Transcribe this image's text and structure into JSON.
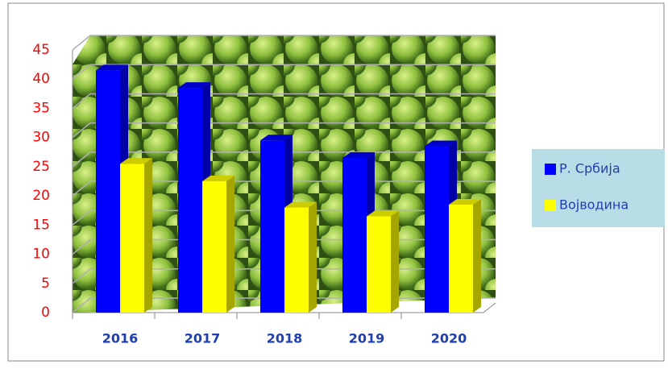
{
  "chart_data": {
    "type": "bar3d",
    "categories": [
      "2016",
      "2017",
      "2018",
      "2019",
      "2020"
    ],
    "series": [
      {
        "name": "Р. Србија",
        "color": "#0000ff",
        "values": [
          41.5,
          38.5,
          29.5,
          26.5,
          28.5
        ]
      },
      {
        "name": "Војводина",
        "color": "#ffff00",
        "values": [
          25.5,
          22.5,
          18,
          16.5,
          18.5
        ]
      }
    ],
    "ylim": [
      0,
      45
    ],
    "yticks": [
      0,
      5,
      10,
      15,
      20,
      25,
      30,
      35,
      40,
      45
    ],
    "grid": true,
    "legend": "right"
  }
}
